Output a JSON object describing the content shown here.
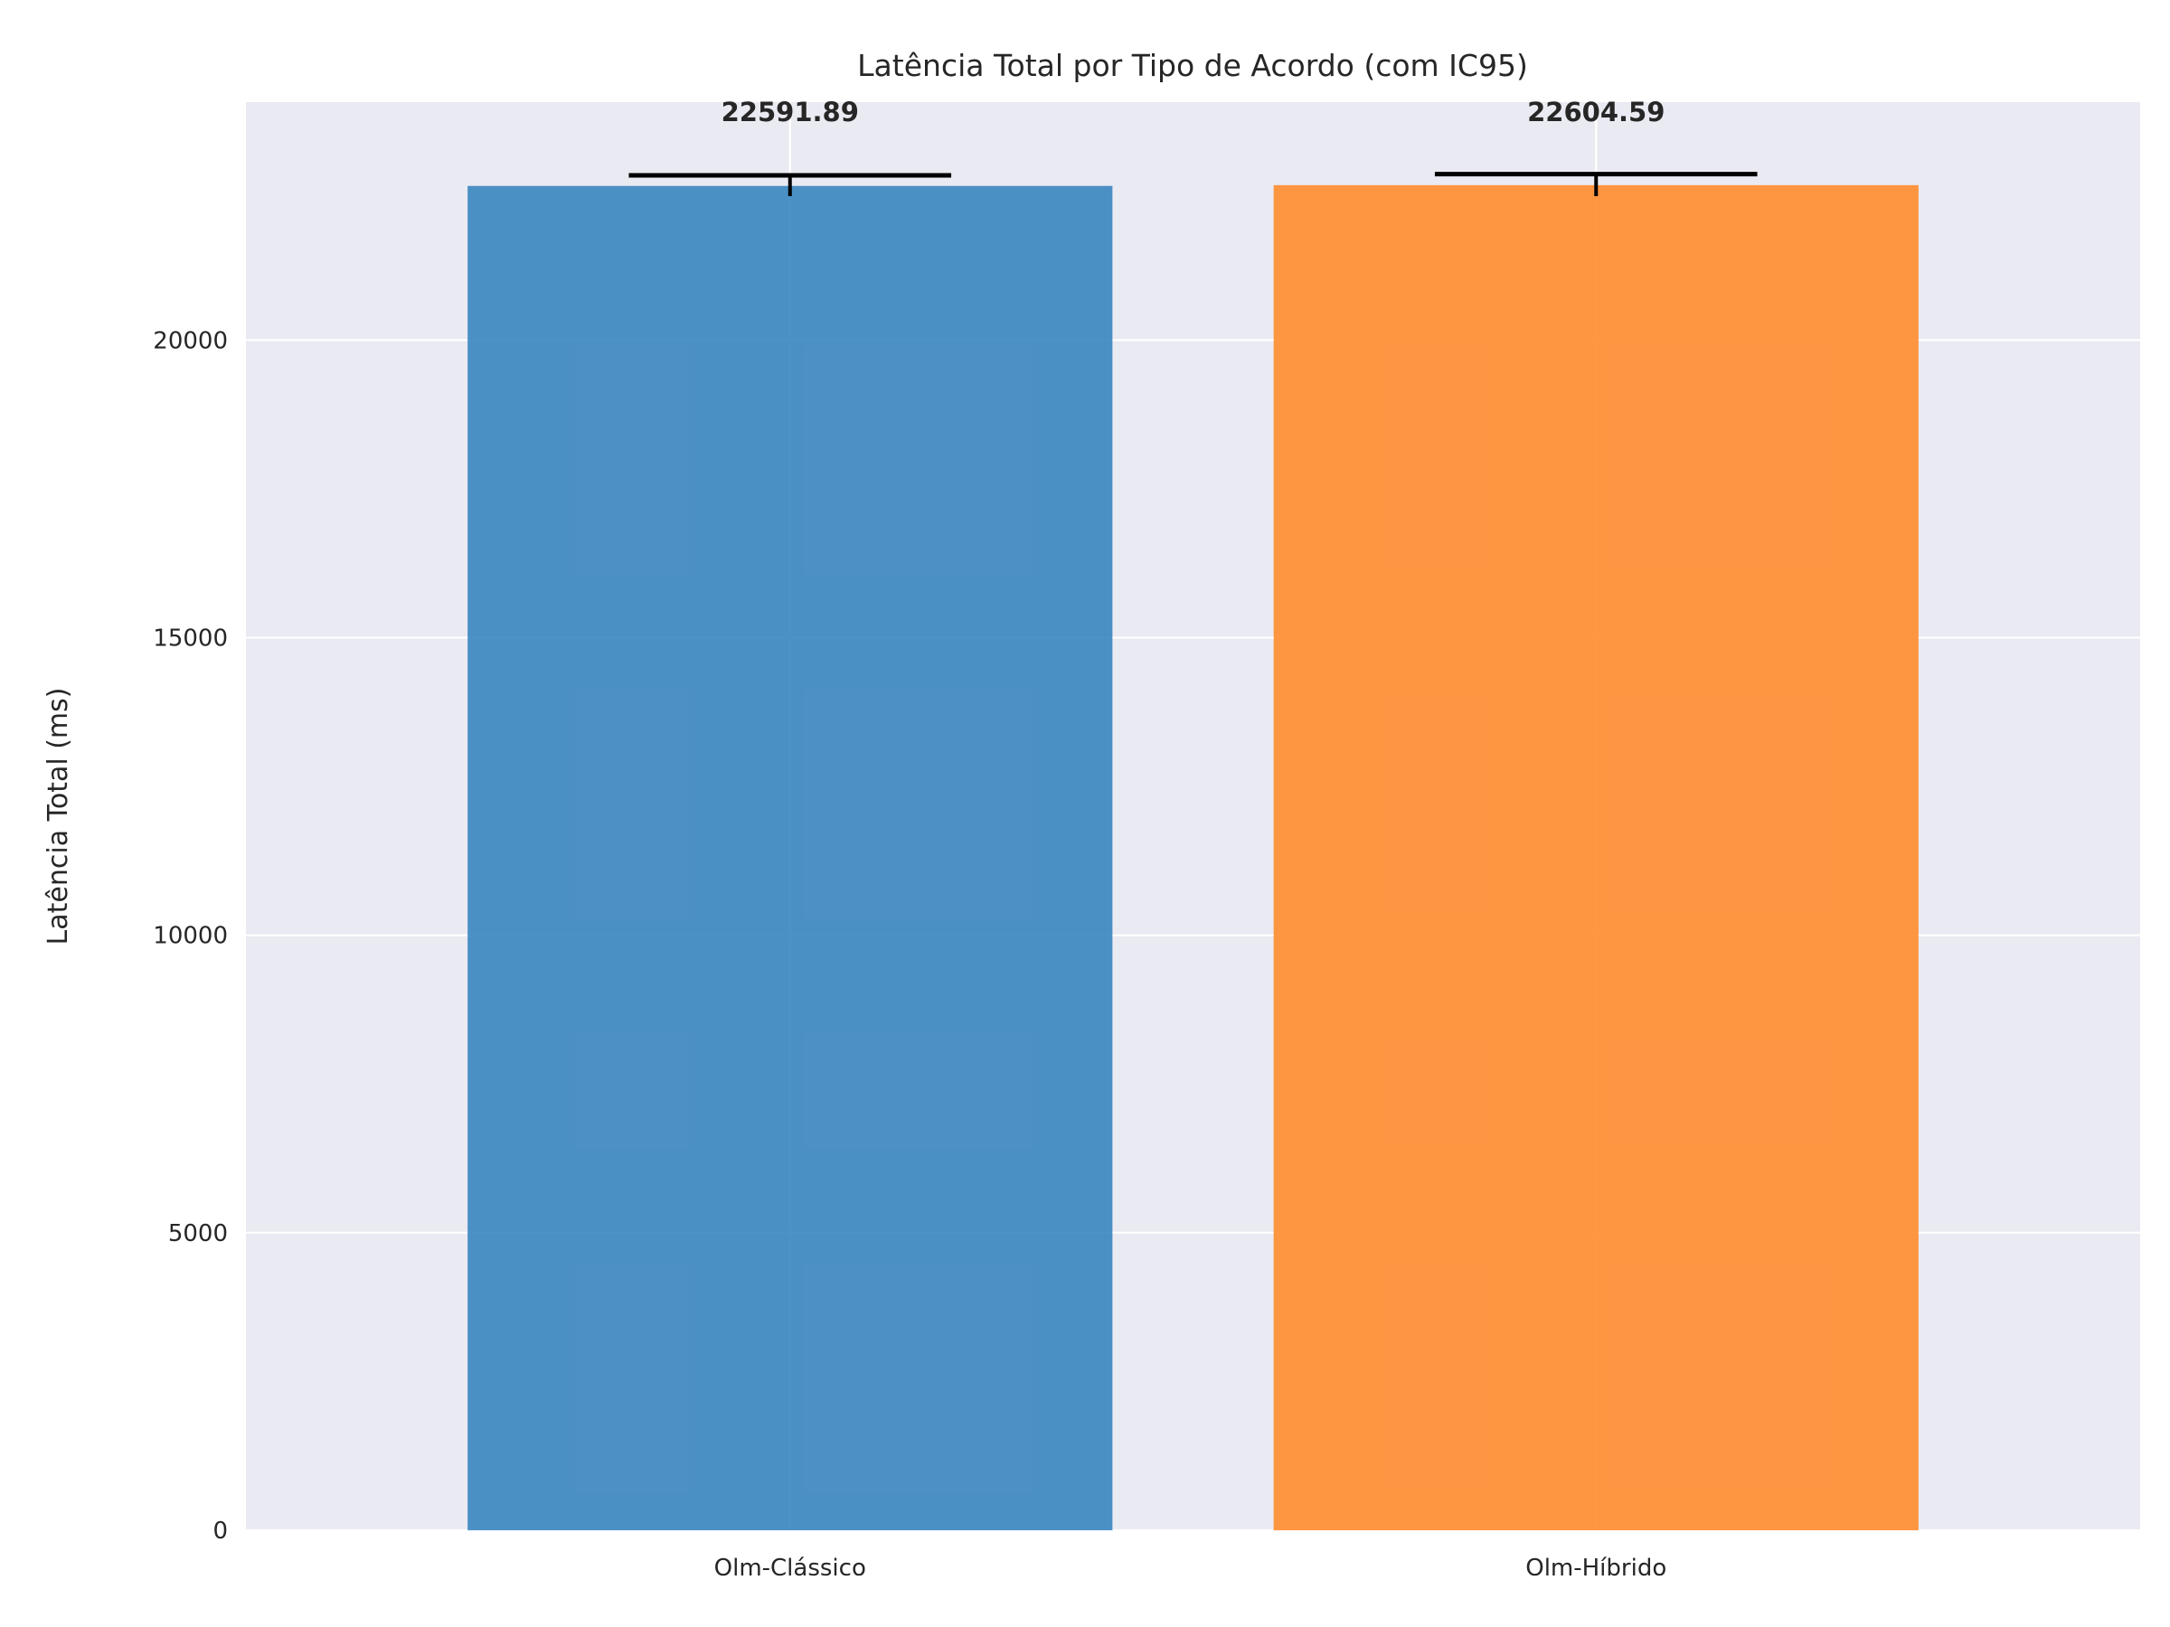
{
  "chart_data": {
    "type": "bar",
    "title": "Latência Total por Tipo de Acordo (com IC95)",
    "xlabel": "",
    "ylabel": "Latência Total (ms)",
    "categories": [
      "Olm-Clássico",
      "Olm-Híbrido"
    ],
    "values": [
      22591.89,
      22604.59
    ],
    "value_labels": [
      "22591.89",
      "22604.59"
    ],
    "error": [
      {
        "low": 22420,
        "high": 22770
      },
      {
        "low": 22420,
        "high": 22790
      }
    ],
    "colors": [
      "#3a86c0",
      "#ff8c2e"
    ],
    "bar_opacity": 0.9,
    "ylim": [
      0,
      24000
    ],
    "yticks": [
      0,
      5000,
      10000,
      15000,
      20000
    ],
    "ytick_labels": [
      "0",
      "5000",
      "10000",
      "15000",
      "20000"
    ],
    "grid": true,
    "plot_background": "#eaeaf2",
    "grid_color": "#ffffff"
  }
}
